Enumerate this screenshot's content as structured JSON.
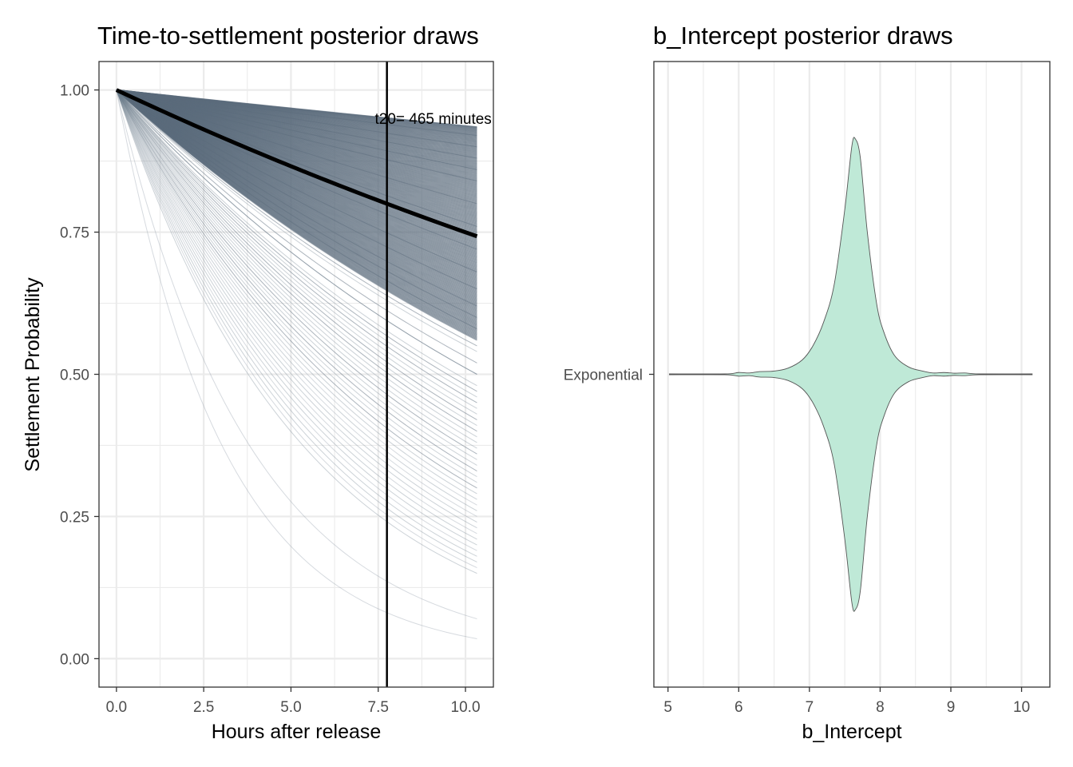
{
  "chart_data": [
    {
      "type": "line",
      "title": "Time-to-settlement posterior draws",
      "xlabel": "Hours after release",
      "ylabel": "Settlement Probability",
      "xlim": [
        -0.5,
        10.8
      ],
      "ylim": [
        -0.05,
        1.05
      ],
      "x_ticks": [
        "0.0",
        "2.5",
        "5.0",
        "7.5",
        "10.0"
      ],
      "y_ticks": [
        "0.00",
        "0.25",
        "0.50",
        "0.75",
        "1.00"
      ],
      "x_range": [
        0,
        10.33
      ],
      "grid": true,
      "series_color": "#5b6b7b",
      "mean_curve": {
        "rate_per_hour": 0.0288,
        "color": "#000000"
      },
      "posterior_draw_endpoints": [
        0.935,
        0.92,
        0.9,
        0.88,
        0.86,
        0.84,
        0.8,
        0.76,
        0.72,
        0.68,
        0.65,
        0.62,
        0.6,
        0.58,
        0.55,
        0.52,
        0.5,
        0.47,
        0.45,
        0.42,
        0.4,
        0.36,
        0.33,
        0.3,
        0.27,
        0.25,
        0.22,
        0.19,
        0.16,
        0.07,
        0.035
      ],
      "vline": {
        "x": 7.75,
        "label": "t20= 465 minutes",
        "label_y": 0.95
      }
    },
    {
      "type": "violin",
      "title": "b_Intercept posterior draws",
      "xlabel": "b_Intercept",
      "ylabel": "",
      "categories": [
        "Exponential"
      ],
      "xlim": [
        4.8,
        10.4
      ],
      "x_ticks": [
        "5",
        "6",
        "7",
        "8",
        "9",
        "10"
      ],
      "grid": true,
      "fill_color": "#bfe9d7",
      "stroke_color": "#555555",
      "x_range": [
        5.02,
        10.15
      ],
      "mode": 7.65,
      "density_profile": [
        {
          "x": 5.02,
          "w": 0.0
        },
        {
          "x": 5.8,
          "w": 0.0
        },
        {
          "x": 6.0,
          "w": 0.006
        },
        {
          "x": 6.15,
          "w": 0.004
        },
        {
          "x": 6.3,
          "w": 0.01
        },
        {
          "x": 6.5,
          "w": 0.012
        },
        {
          "x": 6.7,
          "w": 0.025
        },
        {
          "x": 6.9,
          "w": 0.06
        },
        {
          "x": 7.05,
          "w": 0.12
        },
        {
          "x": 7.2,
          "w": 0.22
        },
        {
          "x": 7.35,
          "w": 0.38
        },
        {
          "x": 7.5,
          "w": 0.7
        },
        {
          "x": 7.6,
          "w": 0.97
        },
        {
          "x": 7.65,
          "w": 1.0
        },
        {
          "x": 7.72,
          "w": 0.92
        },
        {
          "x": 7.82,
          "w": 0.6
        },
        {
          "x": 7.95,
          "w": 0.3
        },
        {
          "x": 8.05,
          "w": 0.18
        },
        {
          "x": 8.2,
          "w": 0.08
        },
        {
          "x": 8.4,
          "w": 0.03
        },
        {
          "x": 8.6,
          "w": 0.012
        },
        {
          "x": 8.75,
          "w": 0.004
        },
        {
          "x": 8.9,
          "w": 0.006
        },
        {
          "x": 9.05,
          "w": 0.003
        },
        {
          "x": 9.2,
          "w": 0.004
        },
        {
          "x": 9.4,
          "w": 0.0
        },
        {
          "x": 10.15,
          "w": 0.0
        }
      ]
    }
  ]
}
